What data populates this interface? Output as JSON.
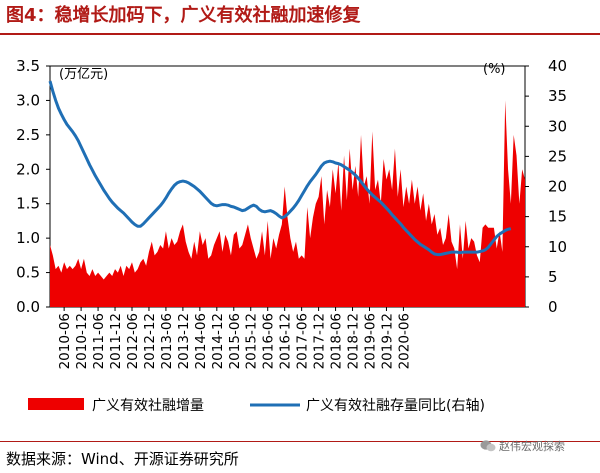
{
  "figure": {
    "title": "图4：稳增长加码下，广义有效社融加速修复",
    "source": "数据来源：Wind、开源证券研究所",
    "watermark": "赵伟宏观探索"
  },
  "chart_data": {
    "type": "bar+line",
    "left_axis": {
      "unit_label": "(万亿元)",
      "ylim": [
        0.0,
        3.5
      ],
      "ticks": [
        "0.0",
        "0.5",
        "1.0",
        "1.5",
        "2.0",
        "2.5",
        "3.0",
        "3.5"
      ]
    },
    "right_axis": {
      "unit_label": "(%)",
      "ylim": [
        0,
        40
      ],
      "ticks": [
        "0",
        "5",
        "10",
        "15",
        "20",
        "25",
        "30",
        "35",
        "40"
      ]
    },
    "x_tick_labels": [
      "2010-06",
      "2010-12",
      "2011-06",
      "2011-12",
      "2012-06",
      "2012-12",
      "2013-06",
      "2013-12",
      "2014-06",
      "2014-12",
      "2015-06",
      "2015-12",
      "2016-06",
      "2016-12",
      "2017-06",
      "2017-12",
      "2018-06",
      "2018-12",
      "2019-06",
      "2019-12",
      "2020-06"
    ],
    "x_start": "2010-01",
    "series": [
      {
        "name": "广义有效社融增量",
        "type": "area",
        "axis": "left",
        "color": "#ee0000",
        "values": [
          0.9,
          0.75,
          0.55,
          0.6,
          0.5,
          0.65,
          0.55,
          0.6,
          0.55,
          0.6,
          0.7,
          0.55,
          0.7,
          0.5,
          0.45,
          0.55,
          0.45,
          0.5,
          0.45,
          0.4,
          0.45,
          0.5,
          0.45,
          0.55,
          0.5,
          0.6,
          0.45,
          0.6,
          0.55,
          0.65,
          0.5,
          0.55,
          0.65,
          0.7,
          0.6,
          0.8,
          0.95,
          0.75,
          0.8,
          0.9,
          0.85,
          1.1,
          0.85,
          1.0,
          0.9,
          0.95,
          1.1,
          1.2,
          0.95,
          0.8,
          0.7,
          0.95,
          0.75,
          1.1,
          0.9,
          1.0,
          0.7,
          0.75,
          0.9,
          1.0,
          1.1,
          0.8,
          1.05,
          0.95,
          0.75,
          1.05,
          1.1,
          0.85,
          0.9,
          1.05,
          1.2,
          1.0,
          0.85,
          0.7,
          0.8,
          1.1,
          0.75,
          1.25,
          0.7,
          1.0,
          0.85,
          1.05,
          1.2,
          1.75,
          1.3,
          1.0,
          0.8,
          0.95,
          0.7,
          0.75,
          0.7,
          1.45,
          1.0,
          1.3,
          1.5,
          1.6,
          1.9,
          1.2,
          1.7,
          1.45,
          2.0,
          1.65,
          2.1,
          1.4,
          2.2,
          1.55,
          2.3,
          1.7,
          2.05,
          1.6,
          2.5,
          1.75,
          1.9,
          1.5,
          2.55,
          1.7,
          1.85,
          1.5,
          2.15,
          1.85,
          2.0,
          1.7,
          2.3,
          1.6,
          2.0,
          1.45,
          1.75,
          1.5,
          1.85,
          1.5,
          1.75,
          1.4,
          1.65,
          1.25,
          1.5,
          1.2,
          1.35,
          1.05,
          1.15,
          0.9,
          1.0,
          1.35,
          0.95,
          0.85,
          0.55,
          1.2,
          0.7,
          1.25,
          0.85,
          1.0,
          0.95,
          0.75,
          0.65,
          1.15,
          1.2,
          1.15,
          1.15,
          1.15,
          0.85,
          1.1,
          0.8,
          3.0,
          2.0,
          1.5,
          2.5,
          2.2,
          1.5,
          2.0,
          1.85
        ]
      },
      {
        "name": "广义有效社融存量同比(右轴)",
        "type": "line",
        "axis": "right",
        "color": "#1f6fb5",
        "values": [
          37.5,
          35.8,
          34.3,
          33.0,
          32.0,
          31.1,
          30.3,
          29.7,
          29.1,
          28.4,
          27.6,
          26.6,
          25.6,
          24.6,
          23.6,
          22.7,
          21.8,
          21.0,
          20.2,
          19.4,
          18.7,
          18.0,
          17.4,
          16.9,
          16.4,
          16.0,
          15.6,
          15.1,
          14.6,
          14.1,
          13.7,
          13.4,
          13.4,
          13.8,
          14.3,
          14.8,
          15.3,
          15.8,
          16.3,
          16.8,
          17.4,
          18.1,
          18.9,
          19.6,
          20.2,
          20.6,
          20.8,
          20.9,
          20.8,
          20.6,
          20.3,
          20.0,
          19.6,
          19.2,
          18.7,
          18.2,
          17.7,
          17.2,
          16.9,
          16.8,
          16.9,
          17.0,
          17.0,
          16.9,
          16.7,
          16.6,
          16.4,
          16.2,
          16.0,
          16.1,
          16.4,
          16.7,
          16.9,
          16.7,
          16.2,
          15.9,
          15.8,
          15.9,
          16.0,
          15.8,
          15.5,
          15.1,
          14.8,
          15.0,
          15.4,
          15.9,
          16.4,
          17.0,
          17.7,
          18.5,
          19.3,
          20.1,
          20.8,
          21.4,
          22.0,
          22.7,
          23.4,
          23.9,
          24.1,
          24.2,
          24.1,
          23.9,
          23.8,
          23.6,
          23.3,
          23.0,
          22.7,
          22.3,
          21.9,
          21.4,
          20.8,
          20.2,
          19.6,
          19.1,
          18.6,
          18.2,
          17.8,
          17.4,
          16.9,
          16.4,
          15.9,
          15.3,
          14.8,
          14.3,
          13.8,
          13.2,
          12.7,
          12.2,
          11.7,
          11.2,
          10.8,
          10.4,
          10.1,
          9.8,
          9.5,
          9.1,
          8.8,
          8.7,
          8.7,
          8.8,
          8.9,
          9.0,
          9.1,
          9.1,
          9.1,
          9.0,
          9.1,
          9.1,
          9.1,
          9.1,
          9.1,
          9.1,
          9.2,
          9.3,
          9.5,
          9.9,
          10.5,
          11.1,
          11.7,
          12.1,
          12.4,
          12.7,
          12.9,
          13.0
        ]
      }
    ],
    "legend": {
      "placement": "bottom"
    }
  }
}
